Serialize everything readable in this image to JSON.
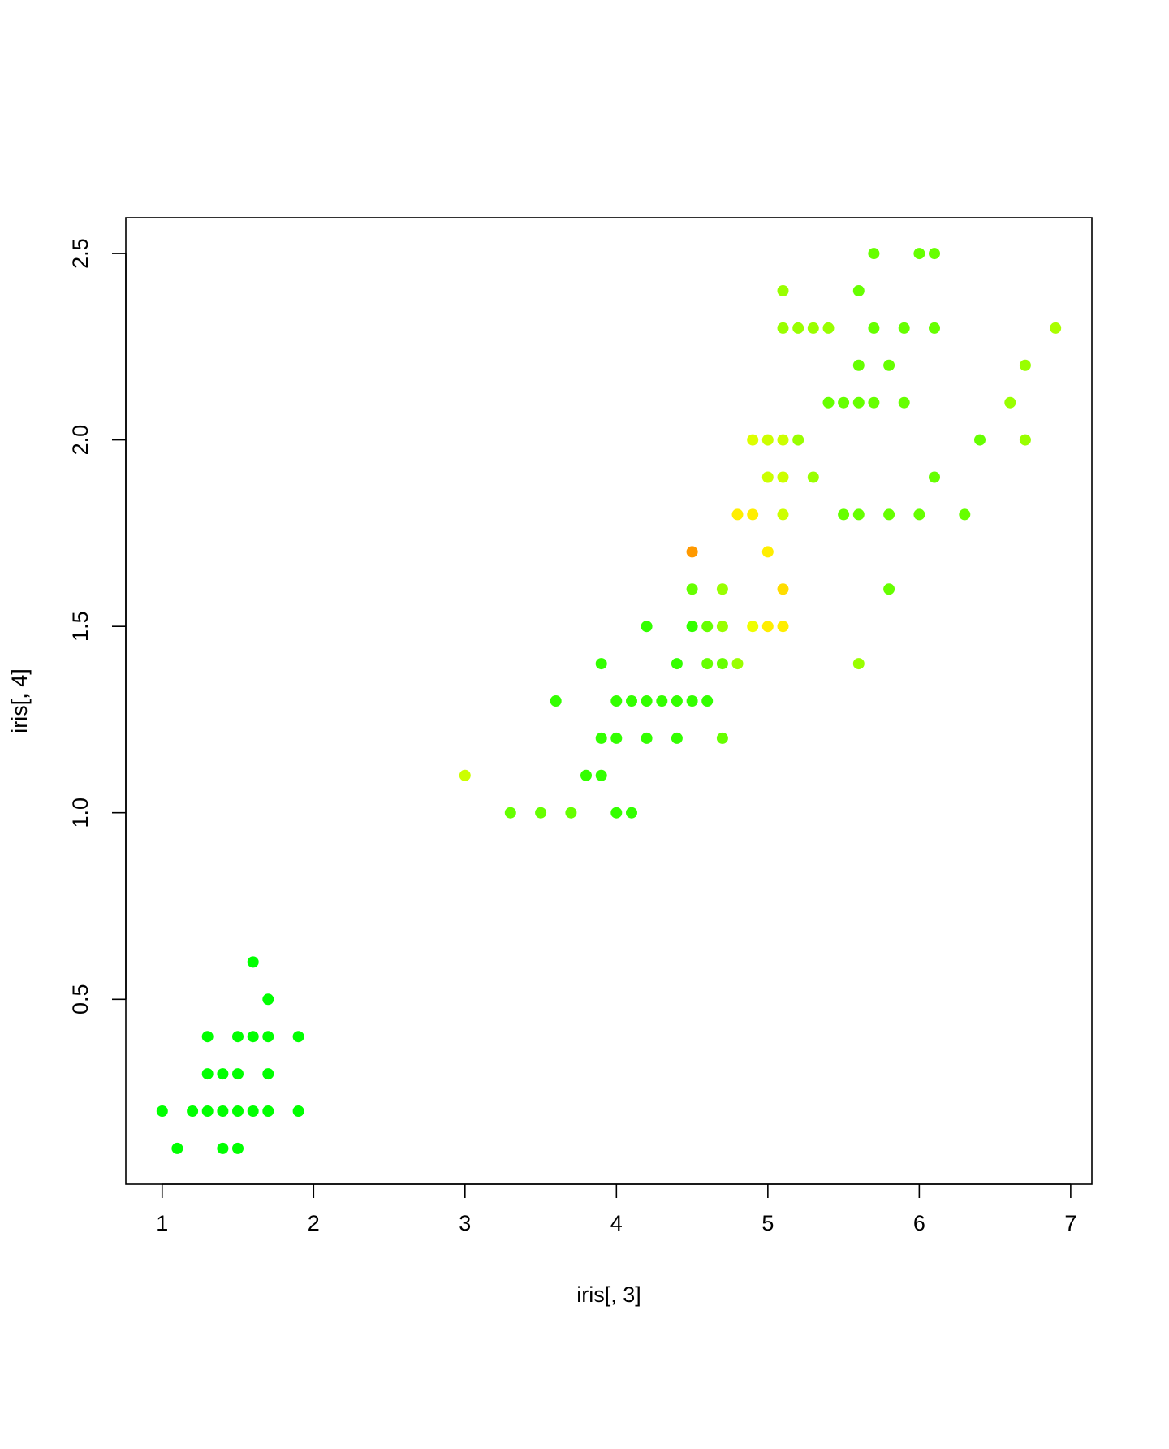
{
  "chart_data": {
    "type": "scatter",
    "title": "",
    "xlabel": "iris[, 3]",
    "ylabel": "iris[, 4]",
    "xlim": [
      0.76,
      7.14
    ],
    "ylim": [
      0.004,
      2.596
    ],
    "x_ticks": [
      1,
      2,
      3,
      4,
      5,
      6,
      7
    ],
    "y_ticks": [
      0.5,
      1.0,
      1.5,
      2.0,
      2.5
    ],
    "x_tick_labels": [
      "1",
      "2",
      "3",
      "4",
      "5",
      "6",
      "7"
    ],
    "y_tick_labels": [
      "0.5",
      "1.0",
      "1.5",
      "2.0",
      "2.5"
    ],
    "grid": false,
    "legend": "none",
    "points": [
      {
        "x": 1.0,
        "y": 0.2,
        "color": "#00ff00"
      },
      {
        "x": 1.1,
        "y": 0.1,
        "color": "#00ff00"
      },
      {
        "x": 1.2,
        "y": 0.2,
        "color": "#00ff00"
      },
      {
        "x": 1.3,
        "y": 0.2,
        "color": "#00ff00"
      },
      {
        "x": 1.3,
        "y": 0.3,
        "color": "#00ff00"
      },
      {
        "x": 1.3,
        "y": 0.4,
        "color": "#00ff00"
      },
      {
        "x": 1.4,
        "y": 0.1,
        "color": "#00ff00"
      },
      {
        "x": 1.4,
        "y": 0.2,
        "color": "#00ff00"
      },
      {
        "x": 1.4,
        "y": 0.3,
        "color": "#00ff00"
      },
      {
        "x": 1.5,
        "y": 0.1,
        "color": "#00ff00"
      },
      {
        "x": 1.5,
        "y": 0.2,
        "color": "#00ff00"
      },
      {
        "x": 1.5,
        "y": 0.3,
        "color": "#00ff00"
      },
      {
        "x": 1.5,
        "y": 0.4,
        "color": "#00ff00"
      },
      {
        "x": 1.6,
        "y": 0.2,
        "color": "#00ff00"
      },
      {
        "x": 1.6,
        "y": 0.4,
        "color": "#00ff00"
      },
      {
        "x": 1.6,
        "y": 0.6,
        "color": "#00ff00"
      },
      {
        "x": 1.7,
        "y": 0.2,
        "color": "#00ff00"
      },
      {
        "x": 1.7,
        "y": 0.3,
        "color": "#00ff00"
      },
      {
        "x": 1.7,
        "y": 0.4,
        "color": "#00ff00"
      },
      {
        "x": 1.7,
        "y": 0.5,
        "color": "#00ff00"
      },
      {
        "x": 1.9,
        "y": 0.2,
        "color": "#00ff00"
      },
      {
        "x": 1.9,
        "y": 0.4,
        "color": "#00ff00"
      },
      {
        "x": 3.0,
        "y": 1.1,
        "color": "#ccff00"
      },
      {
        "x": 3.3,
        "y": 1.0,
        "color": "#66ff00"
      },
      {
        "x": 3.5,
        "y": 1.0,
        "color": "#66ff00"
      },
      {
        "x": 3.6,
        "y": 1.3,
        "color": "#33ff00"
      },
      {
        "x": 3.7,
        "y": 1.0,
        "color": "#66ff00"
      },
      {
        "x": 3.8,
        "y": 1.1,
        "color": "#33ff00"
      },
      {
        "x": 3.9,
        "y": 1.1,
        "color": "#33ff00"
      },
      {
        "x": 3.9,
        "y": 1.2,
        "color": "#33ff00"
      },
      {
        "x": 3.9,
        "y": 1.4,
        "color": "#33ff00"
      },
      {
        "x": 4.0,
        "y": 1.0,
        "color": "#33ff00"
      },
      {
        "x": 4.0,
        "y": 1.2,
        "color": "#33ff00"
      },
      {
        "x": 4.0,
        "y": 1.3,
        "color": "#33ff00"
      },
      {
        "x": 4.1,
        "y": 1.0,
        "color": "#33ff00"
      },
      {
        "x": 4.1,
        "y": 1.3,
        "color": "#33ff00"
      },
      {
        "x": 4.2,
        "y": 1.2,
        "color": "#33ff00"
      },
      {
        "x": 4.2,
        "y": 1.3,
        "color": "#33ff00"
      },
      {
        "x": 4.2,
        "y": 1.5,
        "color": "#33ff00"
      },
      {
        "x": 4.3,
        "y": 1.3,
        "color": "#33ff00"
      },
      {
        "x": 4.4,
        "y": 1.2,
        "color": "#33ff00"
      },
      {
        "x": 4.4,
        "y": 1.3,
        "color": "#33ff00"
      },
      {
        "x": 4.4,
        "y": 1.4,
        "color": "#33ff00"
      },
      {
        "x": 4.5,
        "y": 1.3,
        "color": "#33ff00"
      },
      {
        "x": 4.5,
        "y": 1.5,
        "color": "#33ff00"
      },
      {
        "x": 4.5,
        "y": 1.6,
        "color": "#66ff00"
      },
      {
        "x": 4.5,
        "y": 1.7,
        "color": "#ff9900"
      },
      {
        "x": 4.6,
        "y": 1.3,
        "color": "#33ff00"
      },
      {
        "x": 4.6,
        "y": 1.4,
        "color": "#66ff00"
      },
      {
        "x": 4.6,
        "y": 1.5,
        "color": "#66ff00"
      },
      {
        "x": 4.7,
        "y": 1.2,
        "color": "#66ff00"
      },
      {
        "x": 4.7,
        "y": 1.4,
        "color": "#66ff00"
      },
      {
        "x": 4.7,
        "y": 1.5,
        "color": "#99ff00"
      },
      {
        "x": 4.7,
        "y": 1.6,
        "color": "#99ff00"
      },
      {
        "x": 4.8,
        "y": 1.4,
        "color": "#99ff00"
      },
      {
        "x": 4.8,
        "y": 1.8,
        "color": "#ffee00"
      },
      {
        "x": 4.9,
        "y": 1.5,
        "color": "#eeff00"
      },
      {
        "x": 4.9,
        "y": 1.8,
        "color": "#ffee00"
      },
      {
        "x": 4.9,
        "y": 2.0,
        "color": "#ddff00"
      },
      {
        "x": 5.0,
        "y": 1.5,
        "color": "#ffee00"
      },
      {
        "x": 5.0,
        "y": 1.7,
        "color": "#ffee00"
      },
      {
        "x": 5.0,
        "y": 1.9,
        "color": "#ccff00"
      },
      {
        "x": 5.0,
        "y": 2.0,
        "color": "#ccff00"
      },
      {
        "x": 5.1,
        "y": 1.5,
        "color": "#ffee00"
      },
      {
        "x": 5.1,
        "y": 1.6,
        "color": "#ffdd00"
      },
      {
        "x": 5.1,
        "y": 1.8,
        "color": "#ccff00"
      },
      {
        "x": 5.1,
        "y": 1.9,
        "color": "#ccff00"
      },
      {
        "x": 5.1,
        "y": 2.0,
        "color": "#ccff00"
      },
      {
        "x": 5.1,
        "y": 2.3,
        "color": "#99ff00"
      },
      {
        "x": 5.1,
        "y": 2.4,
        "color": "#99ff00"
      },
      {
        "x": 5.2,
        "y": 2.0,
        "color": "#99ff00"
      },
      {
        "x": 5.2,
        "y": 2.3,
        "color": "#99ff00"
      },
      {
        "x": 5.3,
        "y": 1.9,
        "color": "#99ff00"
      },
      {
        "x": 5.3,
        "y": 2.3,
        "color": "#99ff00"
      },
      {
        "x": 5.4,
        "y": 2.1,
        "color": "#66ff00"
      },
      {
        "x": 5.4,
        "y": 2.3,
        "color": "#99ff00"
      },
      {
        "x": 5.5,
        "y": 1.8,
        "color": "#66ff00"
      },
      {
        "x": 5.5,
        "y": 2.1,
        "color": "#66ff00"
      },
      {
        "x": 5.6,
        "y": 1.4,
        "color": "#99ff00"
      },
      {
        "x": 5.6,
        "y": 1.8,
        "color": "#66ff00"
      },
      {
        "x": 5.6,
        "y": 2.1,
        "color": "#66ff00"
      },
      {
        "x": 5.6,
        "y": 2.2,
        "color": "#66ff00"
      },
      {
        "x": 5.6,
        "y": 2.4,
        "color": "#66ff00"
      },
      {
        "x": 5.7,
        "y": 2.1,
        "color": "#66ff00"
      },
      {
        "x": 5.7,
        "y": 2.3,
        "color": "#66ff00"
      },
      {
        "x": 5.7,
        "y": 2.5,
        "color": "#66ff00"
      },
      {
        "x": 5.8,
        "y": 1.6,
        "color": "#66ff00"
      },
      {
        "x": 5.8,
        "y": 1.8,
        "color": "#66ff00"
      },
      {
        "x": 5.8,
        "y": 2.2,
        "color": "#66ff00"
      },
      {
        "x": 5.9,
        "y": 2.1,
        "color": "#66ff00"
      },
      {
        "x": 5.9,
        "y": 2.3,
        "color": "#66ff00"
      },
      {
        "x": 6.0,
        "y": 1.8,
        "color": "#66ff00"
      },
      {
        "x": 6.0,
        "y": 2.5,
        "color": "#66ff00"
      },
      {
        "x": 6.1,
        "y": 1.9,
        "color": "#66ff00"
      },
      {
        "x": 6.1,
        "y": 2.3,
        "color": "#66ff00"
      },
      {
        "x": 6.1,
        "y": 2.5,
        "color": "#66ff00"
      },
      {
        "x": 6.3,
        "y": 1.8,
        "color": "#66ff00"
      },
      {
        "x": 6.4,
        "y": 2.0,
        "color": "#66ff00"
      },
      {
        "x": 6.6,
        "y": 2.1,
        "color": "#99ff00"
      },
      {
        "x": 6.7,
        "y": 2.0,
        "color": "#99ff00"
      },
      {
        "x": 6.7,
        "y": 2.2,
        "color": "#99ff00"
      },
      {
        "x": 6.9,
        "y": 2.3,
        "color": "#aaff00"
      }
    ]
  }
}
